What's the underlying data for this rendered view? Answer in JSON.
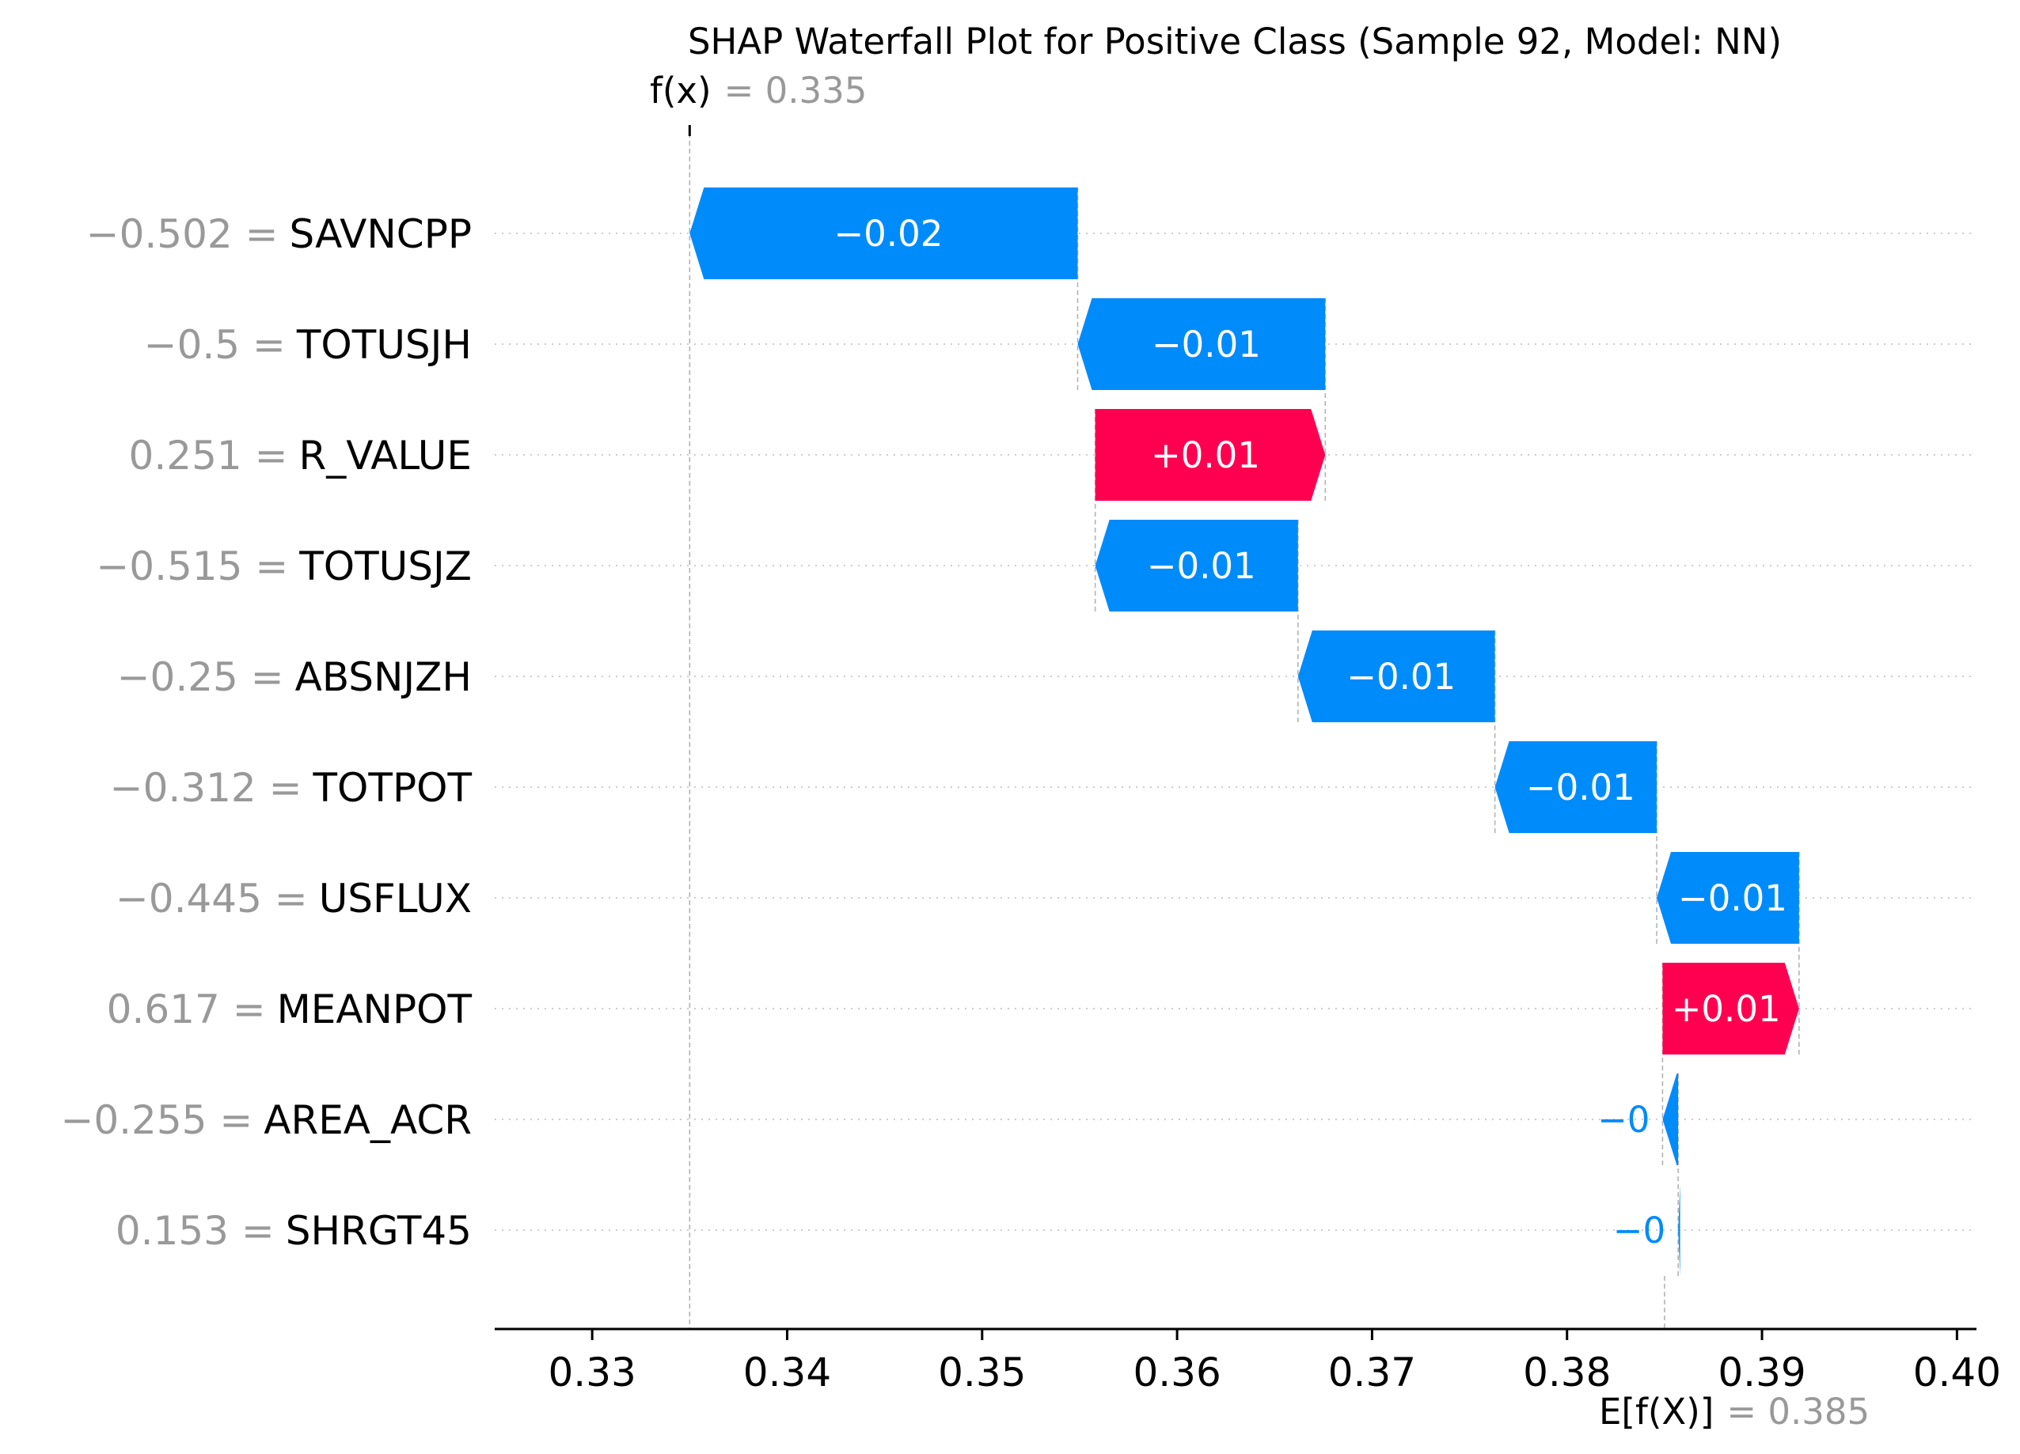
{
  "chart_data": {
    "type": "bar",
    "subtype": "shap-waterfall",
    "title": "SHAP Waterfall Plot for Positive Class (Sample 92, Model: NN)",
    "fx": {
      "label": "f(x)",
      "value_text": "= 0.335",
      "value": 0.335
    },
    "base": {
      "label": "E[f(X)]",
      "value_text": "= 0.385",
      "value": 0.385
    },
    "xlim": [
      0.325,
      0.401
    ],
    "xticks": [
      0.33,
      0.34,
      0.35,
      0.36,
      0.37,
      0.38,
      0.39,
      0.4
    ],
    "xtick_labels": [
      "0.33",
      "0.34",
      "0.35",
      "0.36",
      "0.37",
      "0.38",
      "0.39",
      "0.40"
    ],
    "colors": {
      "positive": "#ff0051",
      "negative": "#008bfb"
    },
    "features": [
      {
        "value_text": "−0.502 =",
        "name": "SAVNCPP",
        "shap": -0.0199,
        "label": "−0.02"
      },
      {
        "value_text": "−0.5 =",
        "name": "TOTUSJH",
        "shap": -0.0127,
        "label": "−0.01"
      },
      {
        "value_text": "0.251 =",
        "name": "R_VALUE",
        "shap": 0.0118,
        "label": "+0.01"
      },
      {
        "value_text": "−0.515 =",
        "name": "TOTUSJZ",
        "shap": -0.0104,
        "label": "−0.01"
      },
      {
        "value_text": "−0.25 =",
        "name": "ABSNJZH",
        "shap": -0.0101,
        "label": "−0.01"
      },
      {
        "value_text": "−0.312 =",
        "name": "TOTPOT",
        "shap": -0.0083,
        "label": "−0.01"
      },
      {
        "value_text": "−0.445 =",
        "name": "USFLUX",
        "shap": -0.0073,
        "label": "−0.01"
      },
      {
        "value_text": "0.617 =",
        "name": "MEANPOT",
        "shap": 0.007,
        "label": "+0.01"
      },
      {
        "value_text": "−0.255 =",
        "name": "AREA_ACR",
        "shap": -0.0008,
        "label": "−0"
      },
      {
        "value_text": "0.153 =",
        "name": "SHRGT45",
        "shap": -0.0001,
        "label": "−0"
      }
    ]
  }
}
